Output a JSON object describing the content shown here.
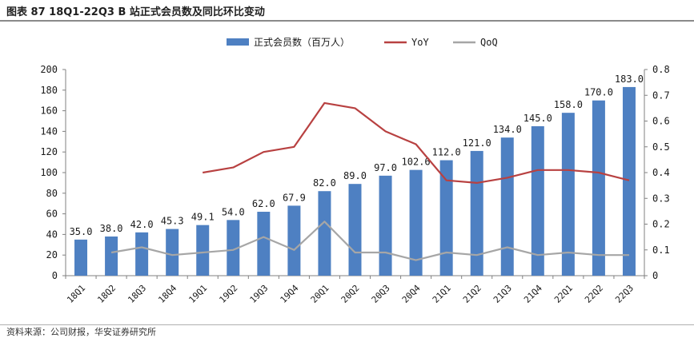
{
  "page_title": "图表 87 18Q1-22Q3 B 站正式会员数及同比环比变动",
  "source_note": "资料来源：公司财报，华安证券研究所",
  "colors": {
    "bar": "#4e80c2",
    "yoy": "#b84141",
    "qoq": "#a6a6a6",
    "axis": "#808080"
  },
  "chart_data": {
    "type": "bar",
    "categories": [
      "18Q1",
      "18Q2",
      "18Q3",
      "18Q4",
      "19Q1",
      "19Q2",
      "19Q3",
      "19Q4",
      "20Q1",
      "20Q2",
      "20Q3",
      "20Q4",
      "21Q1",
      "21Q2",
      "21Q3",
      "21Q4",
      "22Q1",
      "22Q2",
      "22Q3"
    ],
    "data_labels": [
      "35.0",
      "38.0",
      "42.0",
      "45.3",
      "49.1",
      "54.0",
      "62.0",
      "67.9",
      "82.0",
      "89.0",
      "97.0",
      "102.6",
      "112.0",
      "121.0",
      "134.0",
      "145.0",
      "158.0",
      "170.0",
      "183.0"
    ],
    "series": [
      {
        "name": "正式会员数（百万人）",
        "type": "bar",
        "axis": "left",
        "values": [
          35.0,
          38.0,
          42.0,
          45.3,
          49.1,
          54.0,
          62.0,
          67.9,
          82.0,
          89.0,
          97.0,
          102.6,
          112.0,
          121.0,
          134.0,
          145.0,
          158.0,
          170.0,
          183.0
        ]
      },
      {
        "name": "YoY",
        "type": "line",
        "axis": "right",
        "values": [
          null,
          null,
          null,
          null,
          0.4,
          0.42,
          0.48,
          0.5,
          0.67,
          0.65,
          0.56,
          0.51,
          0.37,
          0.36,
          0.38,
          0.41,
          0.41,
          0.4,
          0.37
        ]
      },
      {
        "name": "QoQ",
        "type": "line",
        "axis": "right",
        "values": [
          null,
          0.09,
          0.11,
          0.08,
          0.09,
          0.1,
          0.15,
          0.1,
          0.21,
          0.09,
          0.09,
          0.06,
          0.09,
          0.08,
          0.11,
          0.08,
          0.09,
          0.08,
          0.08
        ]
      }
    ],
    "ylim_left": [
      0,
      200
    ],
    "yticks_left": [
      "0",
      "20",
      "40",
      "60",
      "80",
      "100",
      "120",
      "140",
      "160",
      "180",
      "200"
    ],
    "ylim_right": [
      0,
      0.8
    ],
    "yticks_right": [
      "0",
      "0.1",
      "0.2",
      "0.3",
      "0.4",
      "0.5",
      "0.6",
      "0.7",
      "0.8"
    ],
    "grid": false,
    "legend_position": "top-center"
  }
}
